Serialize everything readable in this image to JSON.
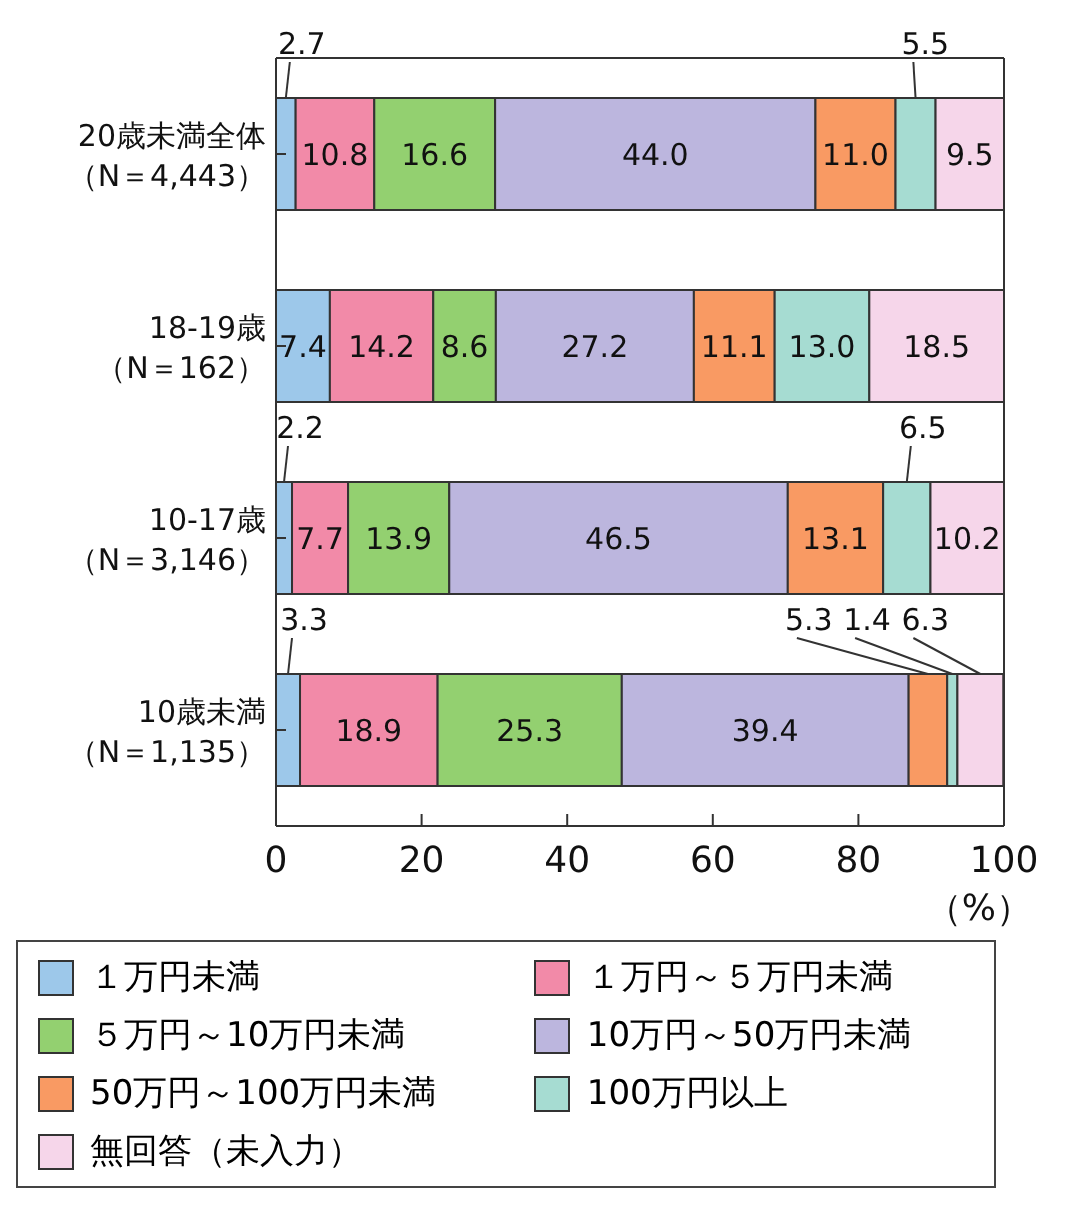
{
  "chart_data": {
    "type": "bar",
    "orientation": "horizontal",
    "stacked": true,
    "grid": false,
    "legend": "bottom",
    "xlabel": "（%）",
    "categories": [
      "20歳未満全体（N＝4,443）",
      "18-19歳（N＝162）",
      "10-17歳（N＝3,146）",
      "10歳未満（N＝1,135）"
    ],
    "xlim": [
      0,
      100
    ],
    "xticks": [
      0,
      20,
      40,
      60,
      80,
      100
    ],
    "series": [
      {
        "name": "１万円未満",
        "color": "#9dc8ea",
        "values": [
          2.7,
          7.4,
          2.2,
          3.3
        ],
        "value_labels": [
          "2.7",
          "7.4",
          "2.2",
          "3.3"
        ]
      },
      {
        "name": "１万円～５万円未満",
        "color": "#f28aa8",
        "values": [
          10.8,
          14.2,
          7.7,
          18.9
        ],
        "value_labels": [
          "10.8",
          "14.2",
          "7.7",
          "18.9"
        ]
      },
      {
        "name": "５万円～10万円未満",
        "color": "#93d070",
        "values": [
          16.6,
          8.6,
          13.9,
          25.3
        ],
        "value_labels": [
          "16.6",
          "8.6",
          "13.9",
          "25.3"
        ]
      },
      {
        "name": "10万円～50万円未満",
        "color": "#bcb6de",
        "values": [
          44.0,
          27.2,
          46.5,
          39.4
        ],
        "value_labels": [
          "44.0",
          "27.2",
          "46.5",
          "39.4"
        ]
      },
      {
        "name": "50万円～100万円未満",
        "color": "#f99a63",
        "values": [
          11.0,
          11.1,
          13.1,
          5.3
        ],
        "value_labels": [
          "11.0",
          "11.1",
          "13.1",
          "5.3"
        ]
      },
      {
        "name": "100万円以上",
        "color": "#a6dcd2",
        "values": [
          5.5,
          13.0,
          6.5,
          1.4
        ],
        "value_labels": [
          "5.5",
          "13.0",
          "6.5",
          "1.4"
        ]
      },
      {
        "name": "無回答（未入力）",
        "color": "#f6d6ea",
        "values": [
          9.5,
          18.5,
          10.2,
          6.3
        ],
        "value_labels": [
          "9.5",
          "18.5",
          "10.2",
          "6.3"
        ]
      }
    ]
  }
}
